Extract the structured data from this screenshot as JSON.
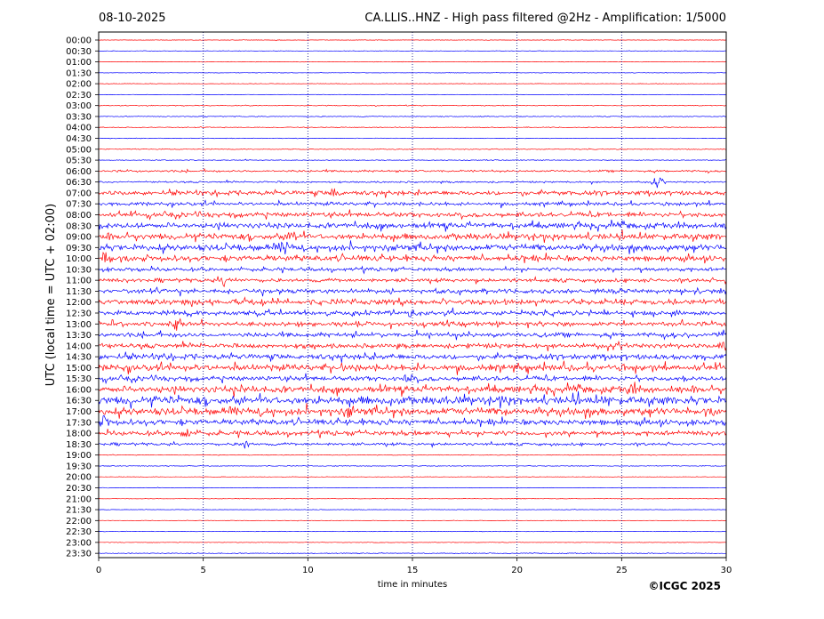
{
  "header": {
    "date": "08-10-2025",
    "title": "CA.LLIS..HNZ - High pass filtered @2Hz - Amplification: 1/5000"
  },
  "footer": {
    "copyright": "©ICGC 2025"
  },
  "colors": {
    "odd_trace": "#ff0000",
    "even_trace": "#0000ff",
    "axis": "#000000",
    "grid": "#000080"
  },
  "chart_data": {
    "type": "line",
    "title": "CA.LLIS..HNZ - High pass filtered @2Hz - Amplification: 1/5000",
    "xlabel": "time in minutes",
    "ylabel": "UTC (local time = UTC + 02:00)",
    "xlim": [
      0,
      30
    ],
    "x_ticks": [
      0,
      5,
      10,
      15,
      20,
      25,
      30
    ],
    "vertical_grid_at": [
      5,
      10,
      15,
      20,
      25
    ],
    "grid": "vertical dotted",
    "legend": "none",
    "row_labels": [
      "00:00",
      "00:30",
      "01:00",
      "01:30",
      "02:00",
      "02:30",
      "03:00",
      "03:30",
      "04:00",
      "04:30",
      "05:00",
      "05:30",
      "06:00",
      "06:30",
      "07:00",
      "07:30",
      "08:00",
      "08:30",
      "09:00",
      "09:30",
      "10:00",
      "10:30",
      "11:00",
      "11:30",
      "12:00",
      "12:30",
      "13:00",
      "13:30",
      "14:00",
      "14:30",
      "15:00",
      "15:30",
      "16:00",
      "16:30",
      "17:00",
      "17:30",
      "18:00",
      "18:30",
      "19:00",
      "19:30",
      "20:00",
      "20:30",
      "21:00",
      "21:30",
      "22:00",
      "22:30",
      "23:00",
      "23:30"
    ],
    "row_colors": [
      "red",
      "blue",
      "red",
      "blue",
      "red",
      "blue",
      "red",
      "blue",
      "red",
      "blue",
      "red",
      "blue",
      "red",
      "blue",
      "red",
      "blue",
      "red",
      "blue",
      "red",
      "blue",
      "red",
      "blue",
      "red",
      "blue",
      "red",
      "blue",
      "red",
      "blue",
      "red",
      "blue",
      "red",
      "blue",
      "red",
      "blue",
      "red",
      "blue",
      "red",
      "blue",
      "red",
      "blue",
      "red",
      "blue",
      "red",
      "blue",
      "red",
      "blue",
      "red",
      "blue"
    ],
    "activity_level": [
      0.3,
      0.3,
      0.3,
      0.3,
      0.3,
      0.3,
      0.5,
      0.5,
      0.5,
      0.4,
      0.5,
      0.5,
      1.2,
      1.0,
      2.5,
      2.0,
      2.5,
      3.0,
      3.5,
      3.5,
      3.0,
      2.0,
      2.0,
      2.5,
      3.0,
      2.5,
      2.5,
      2.5,
      2.5,
      3.0,
      3.5,
      2.5,
      3.5,
      4.5,
      4.0,
      3.0,
      2.5,
      1.5,
      0.4,
      0.5,
      0.3,
      0.3,
      0.3,
      0.3,
      0.3,
      0.3,
      0.3,
      0.5
    ],
    "notable_events": [
      {
        "row": "06:30",
        "minute": 26.7,
        "amplitude": 2.5
      },
      {
        "row": "07:00",
        "minute": 11.3,
        "amplitude": 2.0
      },
      {
        "row": "09:00",
        "minute": 9.3,
        "amplitude": 2.5
      },
      {
        "row": "09:30",
        "minute": 8.9,
        "amplitude": 3.0
      },
      {
        "row": "10:00",
        "minute": 0.4,
        "amplitude": 3.0
      },
      {
        "row": "11:00",
        "minute": 6.0,
        "amplitude": 2.5
      },
      {
        "row": "12:30",
        "minute": 15.0,
        "amplitude": 2.0
      },
      {
        "row": "13:00",
        "minute": 3.7,
        "amplitude": 2.5
      },
      {
        "row": "13:30",
        "minute": 29.8,
        "amplitude": 2.0
      },
      {
        "row": "14:00",
        "minute": 29.9,
        "amplitude": 2.5
      },
      {
        "row": "15:30",
        "minute": 14.8,
        "amplitude": 2.0
      },
      {
        "row": "16:00",
        "minute": 25.5,
        "amplitude": 2.0
      },
      {
        "row": "17:00",
        "minute": 12.0,
        "amplitude": 2.5
      },
      {
        "row": "17:30",
        "minute": 0.3,
        "amplitude": 2.0
      },
      {
        "row": "18:00",
        "minute": 4.2,
        "amplitude": 2.0
      },
      {
        "row": "18:30",
        "minute": 7.0,
        "amplitude": 2.0
      }
    ]
  }
}
